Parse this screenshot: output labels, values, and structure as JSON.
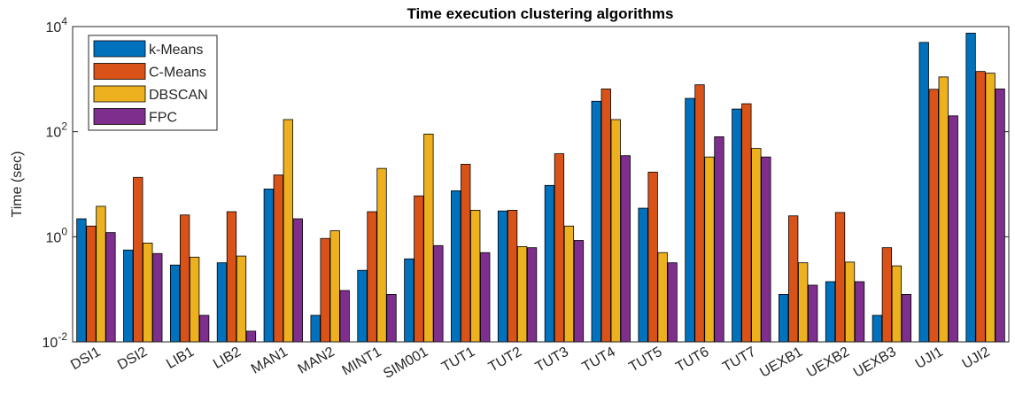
{
  "chart_data": {
    "type": "bar",
    "title": "Time execution clustering algorithms",
    "y_label": "Time (sec)",
    "log_scale": true,
    "legend": "upper-left",
    "categories": [
      "DSI1",
      "DSI2",
      "LIB1",
      "LIB2",
      "MAN1",
      "MAN2",
      "MINT1",
      "SIM001",
      "TUT1",
      "TUT2",
      "TUT3",
      "TUT4",
      "TUT5",
      "TUT6",
      "TUT7",
      "UEXB1",
      "UEXB2",
      "UEXB3",
      "UJI1",
      "UJI2"
    ],
    "series": [
      {
        "name": "k-Means",
        "color": "#0072bd",
        "values": [
          2.2,
          0.56,
          0.29,
          0.32,
          8.1,
          0.032,
          0.23,
          0.38,
          7.5,
          3.1,
          9.5,
          380,
          3.5,
          430,
          270,
          0.08,
          0.14,
          0.032,
          5000,
          7500
        ]
      },
      {
        "name": "C-Means",
        "color": "#d95319",
        "values": [
          1.6,
          13.5,
          2.6,
          3.0,
          15,
          0.93,
          3.0,
          6,
          24,
          3.2,
          38,
          650,
          17,
          780,
          340,
          2.5,
          2.9,
          0.62,
          640,
          1400
        ]
      },
      {
        "name": "DBSCAN",
        "color": "#edb120",
        "values": [
          3.8,
          0.76,
          0.41,
          0.43,
          170,
          1.3,
          20,
          90,
          3.2,
          0.65,
          1.6,
          170,
          0.5,
          33,
          48,
          0.32,
          0.33,
          0.28,
          1100,
          1300
        ]
      },
      {
        "name": "FPC",
        "color": "#7e2f8e",
        "values": [
          1.2,
          0.48,
          0.032,
          0.016,
          2.2,
          0.095,
          0.08,
          0.68,
          0.5,
          0.62,
          0.85,
          35,
          0.32,
          80,
          33,
          0.12,
          0.14,
          0.08,
          200,
          650
        ]
      }
    ],
    "ylim": [
      0.01,
      10000
    ],
    "yticks": [
      {
        "value": 0.01,
        "label": "10^-2"
      },
      {
        "value": 1,
        "label": "10^0"
      },
      {
        "value": 100,
        "label": "10^2"
      },
      {
        "value": 10000,
        "label": "10^4"
      }
    ]
  }
}
